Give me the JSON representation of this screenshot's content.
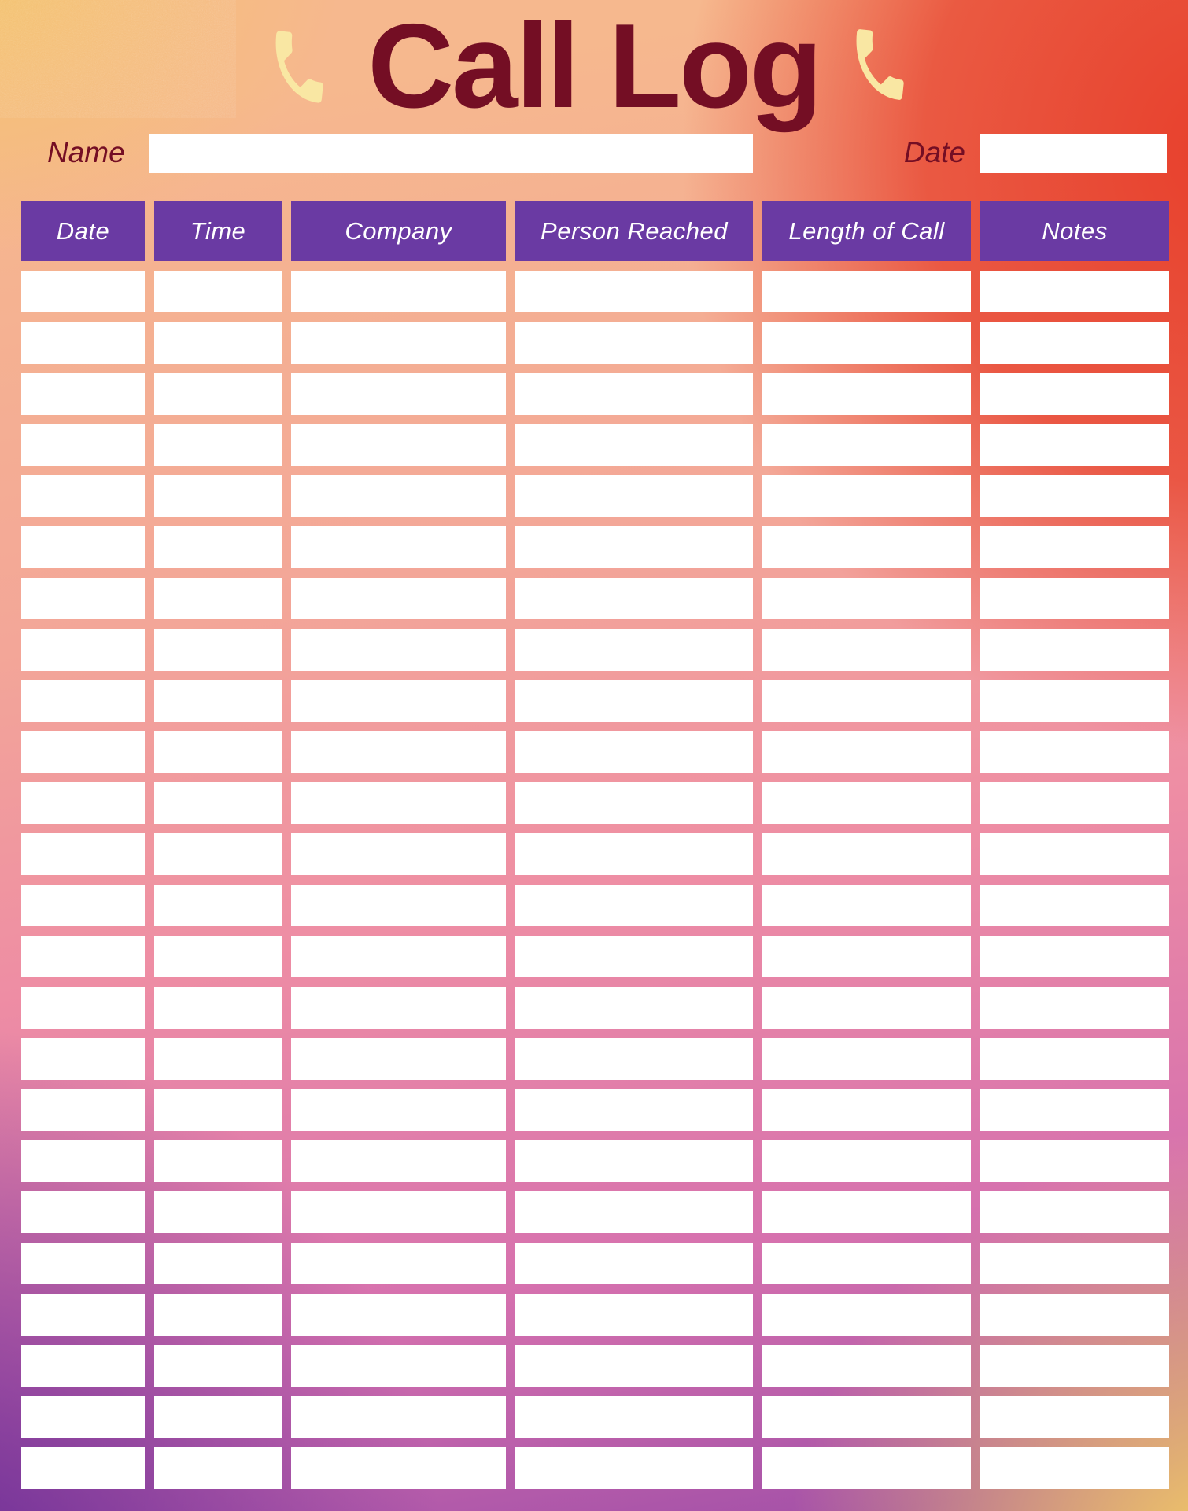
{
  "page": {
    "title": "Call Log"
  },
  "icons": {
    "left": "phone-handset-icon",
    "right": "phone-handset-icon"
  },
  "fields": {
    "name_label": "Name",
    "name_value": "",
    "date_label": "Date",
    "date_value": ""
  },
  "table": {
    "columns": [
      "Date",
      "Time",
      "Company",
      "Person Reached",
      "Length of Call",
      "Notes"
    ],
    "row_count": 24,
    "rows": [
      [
        "",
        "",
        "",
        "",
        "",
        ""
      ],
      [
        "",
        "",
        "",
        "",
        "",
        ""
      ],
      [
        "",
        "",
        "",
        "",
        "",
        ""
      ],
      [
        "",
        "",
        "",
        "",
        "",
        ""
      ],
      [
        "",
        "",
        "",
        "",
        "",
        ""
      ],
      [
        "",
        "",
        "",
        "",
        "",
        ""
      ],
      [
        "",
        "",
        "",
        "",
        "",
        ""
      ],
      [
        "",
        "",
        "",
        "",
        "",
        ""
      ],
      [
        "",
        "",
        "",
        "",
        "",
        ""
      ],
      [
        "",
        "",
        "",
        "",
        "",
        ""
      ],
      [
        "",
        "",
        "",
        "",
        "",
        ""
      ],
      [
        "",
        "",
        "",
        "",
        "",
        ""
      ],
      [
        "",
        "",
        "",
        "",
        "",
        ""
      ],
      [
        "",
        "",
        "",
        "",
        "",
        ""
      ],
      [
        "",
        "",
        "",
        "",
        "",
        ""
      ],
      [
        "",
        "",
        "",
        "",
        "",
        ""
      ],
      [
        "",
        "",
        "",
        "",
        "",
        ""
      ],
      [
        "",
        "",
        "",
        "",
        "",
        ""
      ],
      [
        "",
        "",
        "",
        "",
        "",
        ""
      ],
      [
        "",
        "",
        "",
        "",
        "",
        ""
      ],
      [
        "",
        "",
        "",
        "",
        "",
        ""
      ],
      [
        "",
        "",
        "",
        "",
        "",
        ""
      ],
      [
        "",
        "",
        "",
        "",
        "",
        ""
      ],
      [
        "",
        "",
        "",
        "",
        "",
        ""
      ]
    ]
  },
  "colors": {
    "title_color": "#740e24",
    "header_bg": "#6a3aa3",
    "header_text": "#ffffff",
    "cell_bg": "#ffffff",
    "phone_icon": "#f9e7a3",
    "grad_top_left": "#f4c46a",
    "grad_top_right": "#e7402c",
    "grad_bottom_left": "#6d2f97",
    "grad_bottom_right": "#f8d35f"
  }
}
